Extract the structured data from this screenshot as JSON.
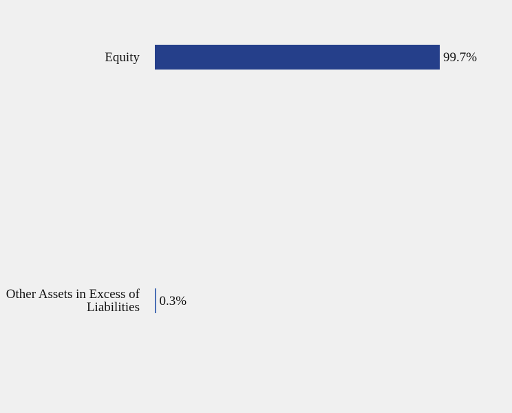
{
  "chart_data": {
    "type": "bar",
    "orientation": "horizontal",
    "categories": [
      "Equity",
      "Other Assets in Excess of Liabilities"
    ],
    "values": [
      99.7,
      0.3
    ],
    "value_labels": [
      "99.7%",
      "0.3%"
    ],
    "colors": [
      "#253f8a",
      "#4a6fb5"
    ]
  }
}
